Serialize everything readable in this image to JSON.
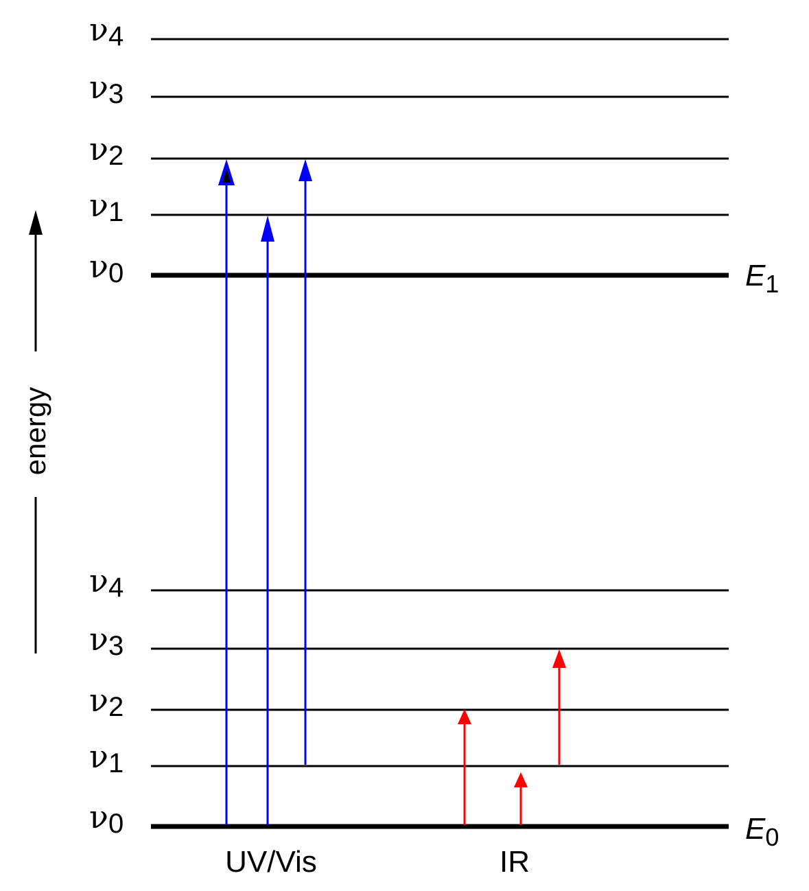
{
  "energy_axis": {
    "label": "energy"
  },
  "electronic_states": [
    {
      "name": "E",
      "subscript": "1",
      "vib_levels": [
        {
          "symbol": "ν",
          "index": "0"
        },
        {
          "symbol": "ν",
          "index": "1"
        },
        {
          "symbol": "ν",
          "index": "2"
        },
        {
          "symbol": "ν",
          "index": "3"
        },
        {
          "symbol": "ν",
          "index": "4"
        }
      ]
    },
    {
      "name": "E",
      "subscript": "0",
      "vib_levels": [
        {
          "symbol": "ν",
          "index": "0"
        },
        {
          "symbol": "ν",
          "index": "1"
        },
        {
          "symbol": "ν",
          "index": "2"
        },
        {
          "symbol": "ν",
          "index": "3"
        },
        {
          "symbol": "ν",
          "index": "4"
        }
      ]
    }
  ],
  "transitions": [
    {
      "group": "UV/Vis",
      "from": "E0 v0",
      "to": "E1 v2",
      "color": "#0000ff"
    },
    {
      "group": "UV/Vis",
      "from": "E0 v0",
      "to": "E1 v1",
      "color": "#0000ff"
    },
    {
      "group": "UV/Vis",
      "from": "E0 v1",
      "to": "E1 v2",
      "color": "#0000ff"
    },
    {
      "group": "IR",
      "from": "E0 v0",
      "to": "E0 v2",
      "color": "#ff0000"
    },
    {
      "group": "IR",
      "from": "E0 v0",
      "to": "E0 v1",
      "color": "#ff0000"
    },
    {
      "group": "IR",
      "from": "E0 v1",
      "to": "E0 v3",
      "color": "#ff0000"
    }
  ],
  "captions": {
    "uv_vis": "UV/Vis",
    "ir": "IR"
  },
  "colors": {
    "uv_vis": "#0000ff",
    "ir": "#ff0000",
    "levels": "#000000"
  }
}
